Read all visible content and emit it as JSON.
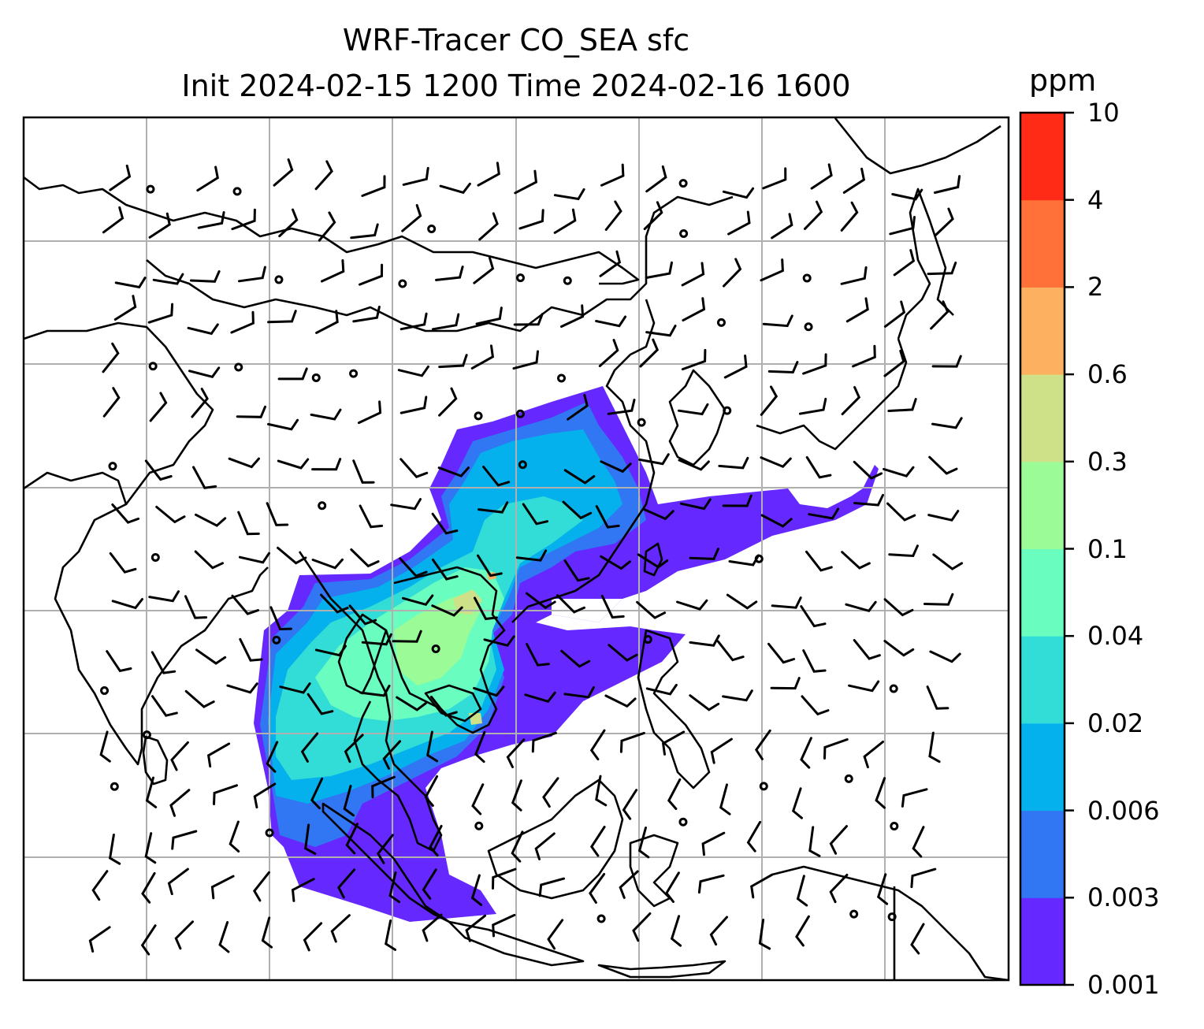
{
  "title": {
    "line1": "WRF-Tracer CO_SEA sfc",
    "line2": "Init 2024-02-15 1200 Time 2024-02-16 1600"
  },
  "colorbar": {
    "unit": "ppm",
    "ticks": [
      "0.001",
      "0.003",
      "0.006",
      "0.02",
      "0.04",
      "0.1",
      "0.3",
      "0.6",
      "2",
      "4",
      "10"
    ],
    "colors": [
      "#6528ff",
      "#3176f3",
      "#05b1ec",
      "#31ddd6",
      "#6afdc0",
      "#9bfb96",
      "#cfe188",
      "#fdb05f",
      "#ff7138",
      "#ff2b16"
    ]
  },
  "map": {
    "grid": "on",
    "tracer_peak_region": "Indochina peninsula",
    "wind_barbs": "on"
  }
}
